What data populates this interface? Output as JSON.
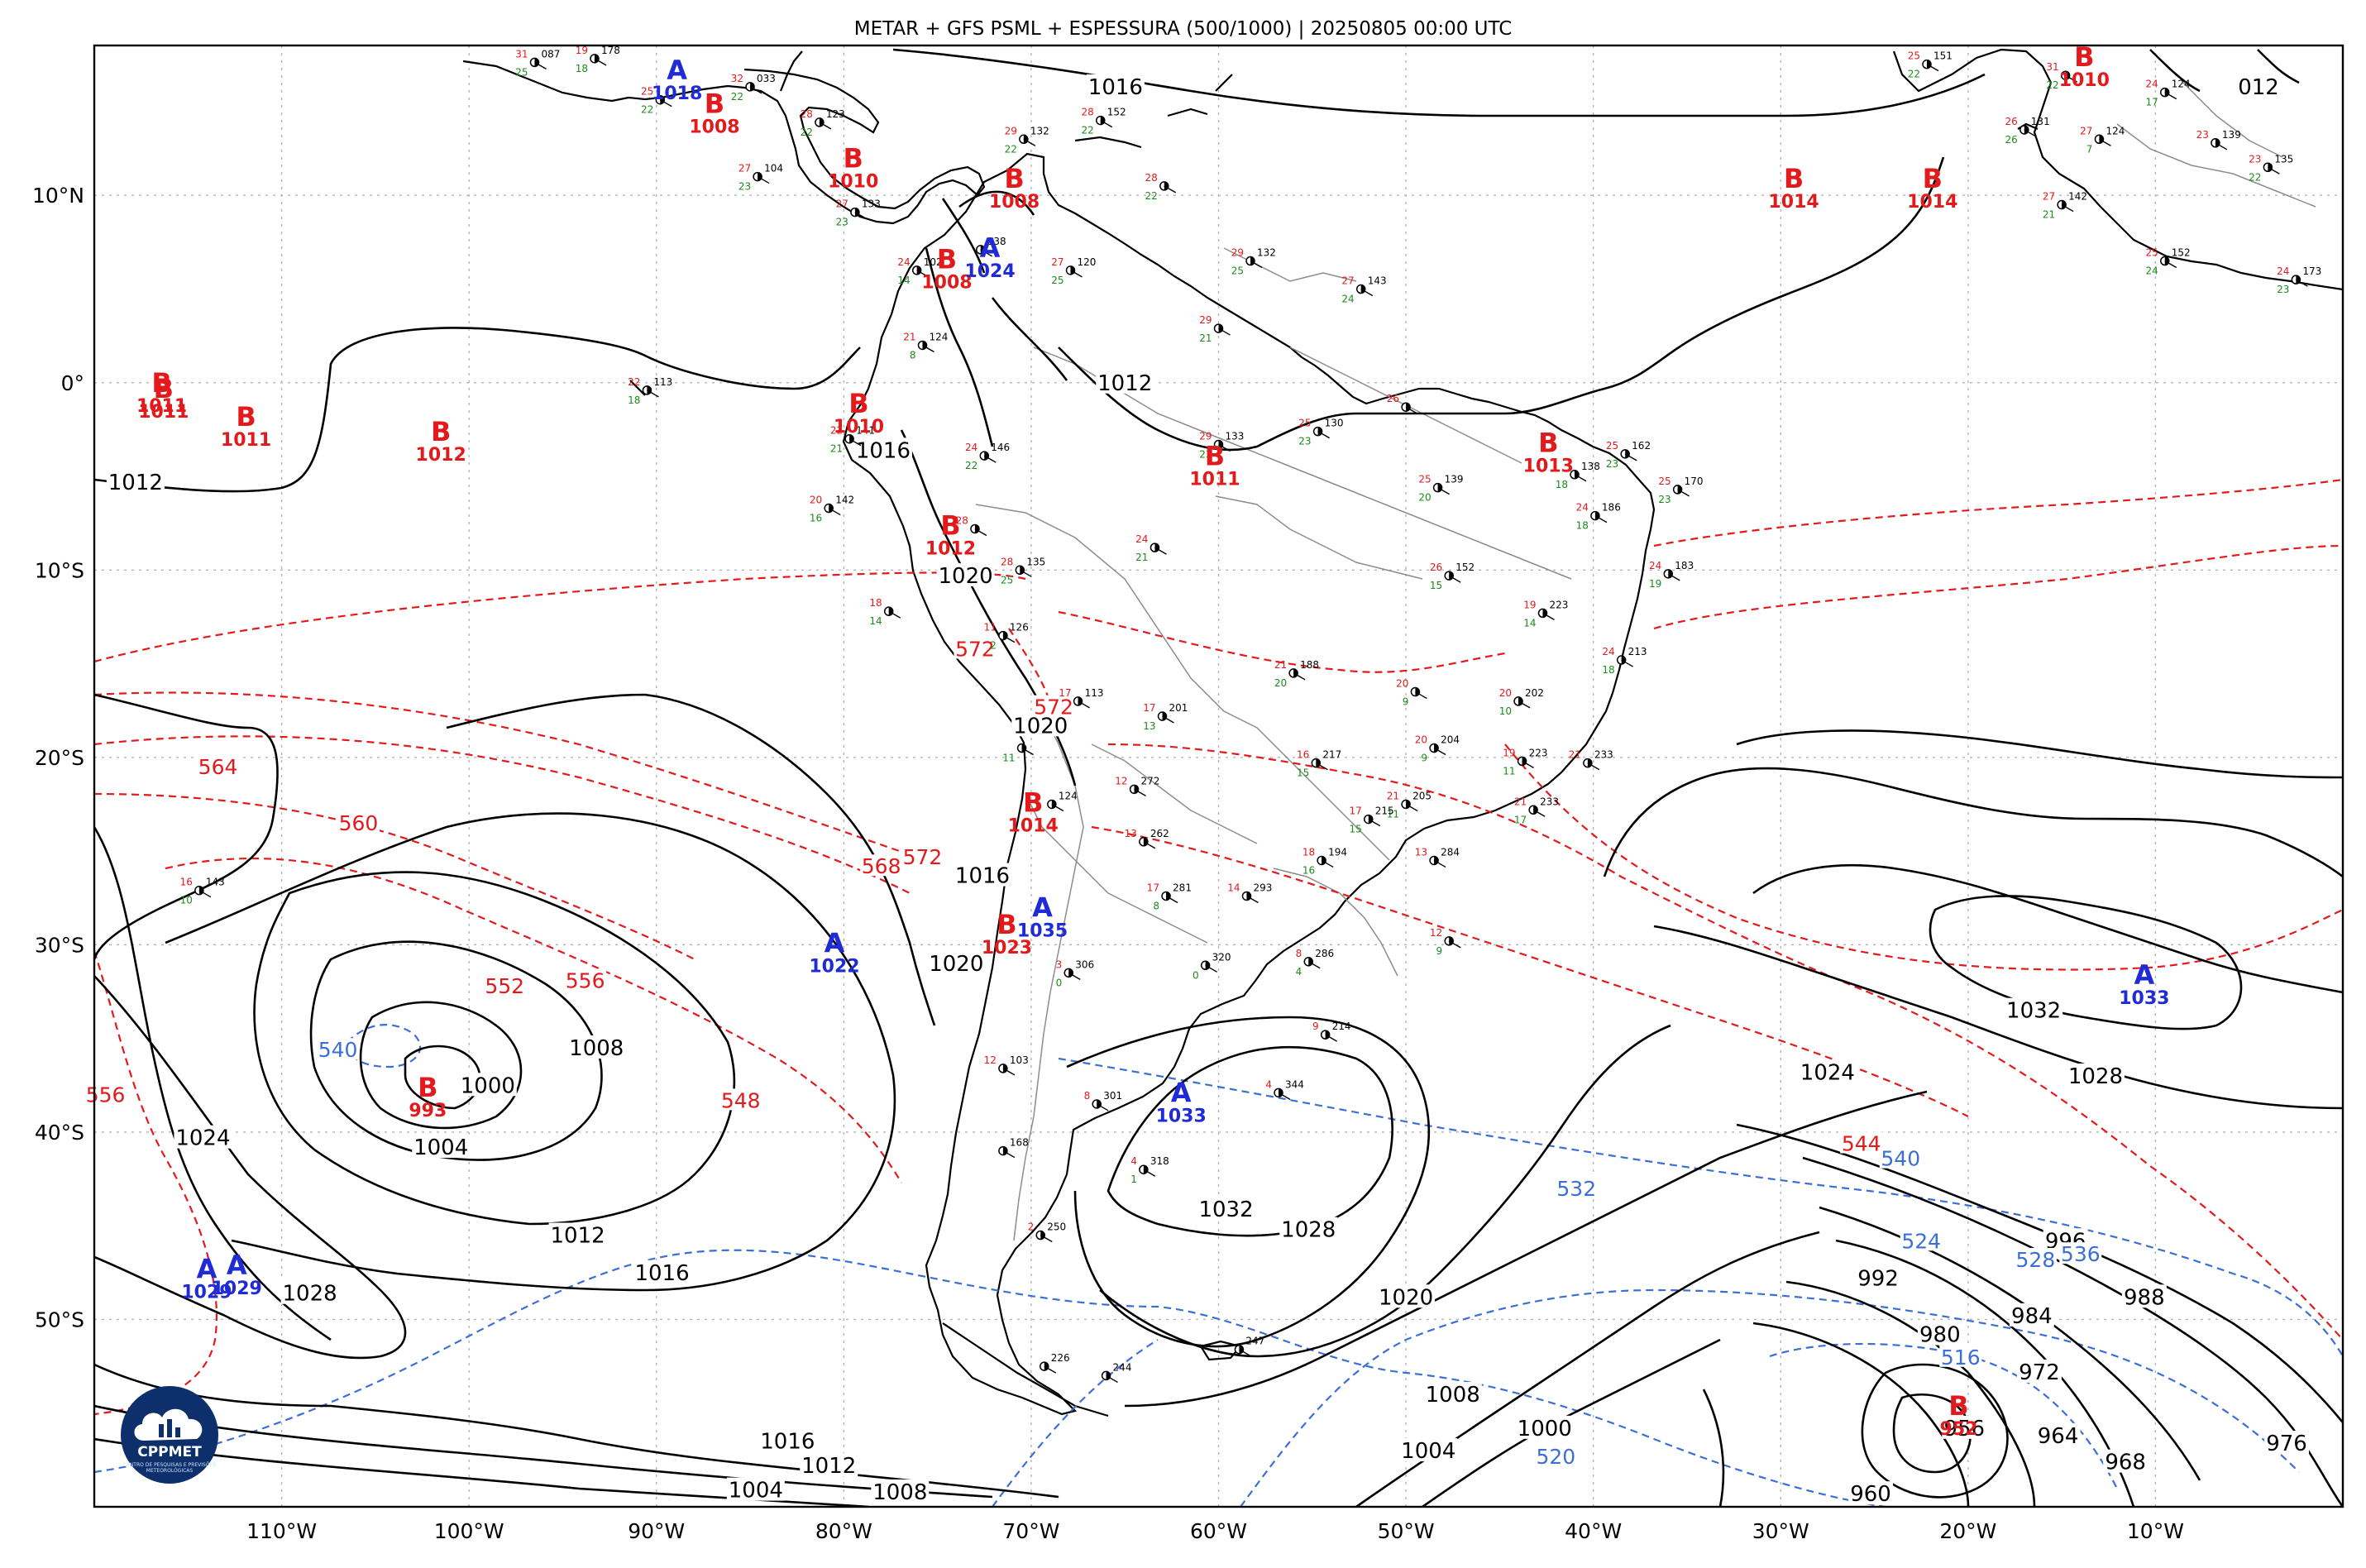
{
  "title": "METAR + GFS PSML + ESPESSURA (500/1000) | 20250805 00:00 UTC",
  "logo": {
    "text": "CPPMET",
    "subtext": "CENTRO DE PESQUISAS E PREVISÕES METEOROLÓGICAS"
  },
  "colors": {
    "low": "#e31a1c",
    "high": "#1f2bd6",
    "isobar": "#000000",
    "thickness_warm": "#e31a1c",
    "thickness_cold": "#3b6fd6",
    "border": "#8c8c8c"
  },
  "extent": {
    "lon_min": -120,
    "lon_max": 0,
    "lat_min": -60,
    "lat_max": 18
  },
  "lat_ticks": [
    {
      "value": 10,
      "label": "10°N"
    },
    {
      "value": 0,
      "label": "0°"
    },
    {
      "value": -10,
      "label": "10°S"
    },
    {
      "value": -20,
      "label": "20°S"
    },
    {
      "value": -30,
      "label": "30°S"
    },
    {
      "value": -40,
      "label": "40°S"
    },
    {
      "value": -50,
      "label": "50°S"
    }
  ],
  "lon_ticks": [
    {
      "value": -110,
      "label": "110°W"
    },
    {
      "value": -100,
      "label": "100°W"
    },
    {
      "value": -90,
      "label": "90°W"
    },
    {
      "value": -80,
      "label": "80°W"
    },
    {
      "value": -70,
      "label": "70°W"
    },
    {
      "value": -60,
      "label": "60°W"
    },
    {
      "value": -50,
      "label": "50°W"
    },
    {
      "value": -40,
      "label": "40°W"
    },
    {
      "value": -30,
      "label": "30°W"
    },
    {
      "value": -20,
      "label": "20°W"
    },
    {
      "value": -10,
      "label": "10°W"
    }
  ],
  "pressure_centers": [
    {
      "type": "B",
      "value": "1011",
      "lon": -116.4,
      "lat": -0.5
    },
    {
      "type": "B",
      "value": "1011",
      "lon": -116.3,
      "lat": -0.8
    },
    {
      "type": "B",
      "value": "1011",
      "lon": -111.9,
      "lat": -2.3
    },
    {
      "type": "B",
      "value": "1012",
      "lon": -101.5,
      "lat": -3.1
    },
    {
      "type": "B",
      "value": "1008",
      "lon": -86.9,
      "lat": 14.4
    },
    {
      "type": "A",
      "value": "1018",
      "lon": -88.9,
      "lat": 16.2
    },
    {
      "type": "B",
      "value": "1010",
      "lon": -79.5,
      "lat": 11.5
    },
    {
      "type": "B",
      "value": "1008",
      "lon": -70.9,
      "lat": 10.4
    },
    {
      "type": "B",
      "value": "1008",
      "lon": -74.5,
      "lat": 6.1
    },
    {
      "type": "A",
      "value": "1024",
      "lon": -72.2,
      "lat": 6.7
    },
    {
      "type": "B",
      "value": "1010",
      "lon": -79.2,
      "lat": -1.6
    },
    {
      "type": "B",
      "value": "1011",
      "lon": -60.2,
      "lat": -4.4
    },
    {
      "type": "B",
      "value": "1013",
      "lon": -42.4,
      "lat": -3.7
    },
    {
      "type": "B",
      "value": "1012",
      "lon": -74.3,
      "lat": -8.1
    },
    {
      "type": "B",
      "value": "1014",
      "lon": -29.3,
      "lat": 10.4
    },
    {
      "type": "B",
      "value": "1014",
      "lon": -21.9,
      "lat": 10.4
    },
    {
      "type": "B",
      "value": "1010",
      "lon": -13.8,
      "lat": 16.9
    },
    {
      "type": "B",
      "value": "1014",
      "lon": -69.9,
      "lat": -22.9
    },
    {
      "type": "B",
      "value": "1023",
      "lon": -71.3,
      "lat": -29.4
    },
    {
      "type": "A",
      "value": "1035",
      "lon": -69.4,
      "lat": -28.5
    },
    {
      "type": "A",
      "value": "1022",
      "lon": -80.5,
      "lat": -30.4
    },
    {
      "type": "B",
      "value": "993",
      "lon": -102.2,
      "lat": -38.1
    },
    {
      "type": "A",
      "value": "1033",
      "lon": -62.0,
      "lat": -38.4
    },
    {
      "type": "A",
      "value": "1033",
      "lon": -10.6,
      "lat": -32.1
    },
    {
      "type": "A",
      "value": "1029",
      "lon": -114.0,
      "lat": -47.8
    },
    {
      "type": "A",
      "value": "1029",
      "lon": -112.4,
      "lat": -47.6
    },
    {
      "type": "B",
      "value": "952",
      "lon": -20.5,
      "lat": -55.1
    }
  ],
  "isobar_labels": [
    {
      "text": "1016",
      "lon": -65.5,
      "lat": 15.8
    },
    {
      "text": "1012",
      "lon": -117.8,
      "lat": -5.3
    },
    {
      "text": "1012",
      "lon": -65.0,
      "lat": 0.0
    },
    {
      "text": "1016",
      "lon": -77.9,
      "lat": -3.6
    },
    {
      "text": "1020",
      "lon": -73.5,
      "lat": -10.3
    },
    {
      "text": "1020",
      "lon": -69.5,
      "lat": -18.3
    },
    {
      "text": "1016",
      "lon": -72.6,
      "lat": -26.3
    },
    {
      "text": "1020",
      "lon": -74.0,
      "lat": -31.0
    },
    {
      "text": "1008",
      "lon": -93.2,
      "lat": -35.5
    },
    {
      "text": "1000",
      "lon": -99.0,
      "lat": -37.5
    },
    {
      "text": "1004",
      "lon": -101.5,
      "lat": -40.8
    },
    {
      "text": "1024",
      "lon": -114.2,
      "lat": -40.3
    },
    {
      "text": "1012",
      "lon": -94.2,
      "lat": -45.5
    },
    {
      "text": "1016",
      "lon": -89.7,
      "lat": -47.5
    },
    {
      "text": "1028",
      "lon": -108.5,
      "lat": -48.6
    },
    {
      "text": "1016",
      "lon": -83.0,
      "lat": -56.5
    },
    {
      "text": "1012",
      "lon": -80.8,
      "lat": -57.8
    },
    {
      "text": "1004",
      "lon": -84.7,
      "lat": -59.1
    },
    {
      "text": "1008",
      "lon": -77.0,
      "lat": -59.2
    },
    {
      "text": "1032",
      "lon": -59.6,
      "lat": -44.1
    },
    {
      "text": "1028",
      "lon": -55.2,
      "lat": -45.2
    },
    {
      "text": "1020",
      "lon": -50.0,
      "lat": -48.8
    },
    {
      "text": "1008",
      "lon": -47.5,
      "lat": -54.0
    },
    {
      "text": "1004",
      "lon": -48.8,
      "lat": -57.0
    },
    {
      "text": "1000",
      "lon": -42.6,
      "lat": -55.8
    },
    {
      "text": "1032",
      "lon": -16.5,
      "lat": -33.5
    },
    {
      "text": "1024",
      "lon": -27.5,
      "lat": -36.8
    },
    {
      "text": "1028",
      "lon": -13.2,
      "lat": -37.0
    },
    {
      "text": "996",
      "lon": -14.8,
      "lat": -45.8
    },
    {
      "text": "992",
      "lon": -24.8,
      "lat": -47.8
    },
    {
      "text": "988",
      "lon": -10.6,
      "lat": -48.8
    },
    {
      "text": "984",
      "lon": -16.6,
      "lat": -49.8
    },
    {
      "text": "980",
      "lon": -21.5,
      "lat": -50.8
    },
    {
      "text": "972",
      "lon": -16.2,
      "lat": -52.8
    },
    {
      "text": "964",
      "lon": -15.2,
      "lat": -56.2
    },
    {
      "text": "956",
      "lon": -20.2,
      "lat": -55.8
    },
    {
      "text": "960",
      "lon": -25.2,
      "lat": -59.3
    },
    {
      "text": "968",
      "lon": -11.6,
      "lat": -57.6
    },
    {
      "text": "976",
      "lon": -3.0,
      "lat": -56.6
    },
    {
      "text": "012",
      "lon": -4.5,
      "lat": 15.8
    }
  ],
  "thickness_labels": [
    {
      "text": "564",
      "lon": -113.4,
      "lat": -20.5,
      "color": "red"
    },
    {
      "text": "560",
      "lon": -105.9,
      "lat": -23.5,
      "color": "red"
    },
    {
      "text": "568",
      "lon": -78.0,
      "lat": -25.8,
      "color": "red"
    },
    {
      "text": "572",
      "lon": -75.8,
      "lat": -25.3,
      "color": "red"
    },
    {
      "text": "572",
      "lon": -73.0,
      "lat": -14.2,
      "color": "red"
    },
    {
      "text": "572",
      "lon": -68.8,
      "lat": -17.3,
      "color": "red"
    },
    {
      "text": "552",
      "lon": -98.1,
      "lat": -32.2,
      "color": "red"
    },
    {
      "text": "556",
      "lon": -93.8,
      "lat": -31.9,
      "color": "red"
    },
    {
      "text": "548",
      "lon": -85.5,
      "lat": -38.3,
      "color": "red"
    },
    {
      "text": "556",
      "lon": -119.4,
      "lat": -38.0,
      "color": "red"
    },
    {
      "text": "544",
      "lon": -25.7,
      "lat": -40.6,
      "color": "red"
    },
    {
      "text": "540",
      "lon": -107.0,
      "lat": -35.6,
      "color": "blue"
    },
    {
      "text": "540",
      "lon": -23.6,
      "lat": -41.4,
      "color": "blue"
    },
    {
      "text": "532",
      "lon": -40.9,
      "lat": -43.0,
      "color": "blue"
    },
    {
      "text": "524",
      "lon": -22.5,
      "lat": -45.8,
      "color": "blue"
    },
    {
      "text": "528",
      "lon": -16.4,
      "lat": -46.8,
      "color": "blue"
    },
    {
      "text": "536",
      "lon": -14.0,
      "lat": -46.5,
      "color": "blue"
    },
    {
      "text": "516",
      "lon": -20.4,
      "lat": -52.0,
      "color": "blue"
    },
    {
      "text": "520",
      "lon": -42.0,
      "lat": -57.3,
      "color": "blue"
    }
  ],
  "stations": [
    {
      "t": "31",
      "d": "25",
      "p": "087",
      "lon": -96.5,
      "lat": 17.1
    },
    {
      "t": "19",
      "d": "18",
      "p": "178",
      "lon": -93.3,
      "lat": 17.3
    },
    {
      "t": "32",
      "d": "22",
      "p": "033",
      "lon": -85.0,
      "lat": 15.8
    },
    {
      "t": "25",
      "d": "22",
      "p": "",
      "lon": -89.8,
      "lat": 15.1
    },
    {
      "t": "28",
      "d": "22",
      "p": "123",
      "lon": -81.3,
      "lat": 13.9
    },
    {
      "t": "27",
      "d": "23",
      "p": "104",
      "lon": -84.6,
      "lat": 11.0
    },
    {
      "t": "27",
      "d": "23",
      "p": "133",
      "lon": -79.4,
      "lat": 9.1
    },
    {
      "t": "29",
      "d": "22",
      "p": "132",
      "lon": -70.4,
      "lat": 13.0
    },
    {
      "t": "28",
      "d": "22",
      "p": "152",
      "lon": -66.3,
      "lat": 14.0
    },
    {
      "t": "28",
      "d": "22",
      "p": "",
      "lon": -62.9,
      "lat": 10.5
    },
    {
      "t": "27",
      "d": "25",
      "p": "120",
      "lon": -67.9,
      "lat": 6.0
    },
    {
      "t": "24",
      "d": "14",
      "p": "102",
      "lon": -76.1,
      "lat": 6.0
    },
    {
      "t": "",
      "d": "",
      "p": "138",
      "lon": -72.7,
      "lat": 7.1
    },
    {
      "t": "29",
      "d": "25",
      "p": "132",
      "lon": -58.3,
      "lat": 6.5
    },
    {
      "t": "27",
      "d": "24",
      "p": "143",
      "lon": -52.4,
      "lat": 5.0
    },
    {
      "t": "29",
      "d": "21",
      "p": "",
      "lon": -60.0,
      "lat": 2.9
    },
    {
      "t": "21",
      "d": "8",
      "p": "124",
      "lon": -75.8,
      "lat": 2.0
    },
    {
      "t": "22",
      "d": "18",
      "p": "113",
      "lon": -90.5,
      "lat": -0.4
    },
    {
      "t": "22",
      "d": "21",
      "p": "141",
      "lon": -79.7,
      "lat": -3.0
    },
    {
      "t": "24",
      "d": "22",
      "p": "146",
      "lon": -72.5,
      "lat": -3.9
    },
    {
      "t": "29",
      "d": "23",
      "p": "133",
      "lon": -60.0,
      "lat": -3.3
    },
    {
      "t": "25",
      "d": "23",
      "p": "130",
      "lon": -54.7,
      "lat": -2.6
    },
    {
      "t": "26",
      "d": "",
      "p": "",
      "lon": -50.0,
      "lat": -1.3
    },
    {
      "t": "",
      "d": "18",
      "p": "138",
      "lon": -41.0,
      "lat": -4.9
    },
    {
      "t": "25",
      "d": "20",
      "p": "139",
      "lon": -48.3,
      "lat": -5.6
    },
    {
      "t": "25",
      "d": "23",
      "p": "162",
      "lon": -38.3,
      "lat": -3.8
    },
    {
      "t": "25",
      "d": "23",
      "p": "170",
      "lon": -35.5,
      "lat": -5.7
    },
    {
      "t": "20",
      "d": "16",
      "p": "142",
      "lon": -80.8,
      "lat": -6.7
    },
    {
      "t": "28",
      "d": "",
      "p": "",
      "lon": -73.0,
      "lat": -7.8
    },
    {
      "t": "24",
      "d": "21",
      "p": "",
      "lon": -63.4,
      "lat": -8.8
    },
    {
      "t": "28",
      "d": "25",
      "p": "135",
      "lon": -70.6,
      "lat": -10.0
    },
    {
      "t": "26",
      "d": "15",
      "p": "152",
      "lon": -47.7,
      "lat": -10.3
    },
    {
      "t": "24",
      "d": "18",
      "p": "186",
      "lon": -39.9,
      "lat": -7.1
    },
    {
      "t": "24",
      "d": "19",
      "p": "183",
      "lon": -36.0,
      "lat": -10.2
    },
    {
      "t": "19",
      "d": "14",
      "p": "223",
      "lon": -42.7,
      "lat": -12.3
    },
    {
      "t": "18",
      "d": "14",
      "p": "",
      "lon": -77.6,
      "lat": -12.2
    },
    {
      "t": "24",
      "d": "18",
      "p": "213",
      "lon": -38.5,
      "lat": -14.8
    },
    {
      "t": "11",
      "d": "2",
      "p": "126",
      "lon": -71.5,
      "lat": -13.5
    },
    {
      "t": "21",
      "d": "20",
      "p": "188",
      "lon": -56.0,
      "lat": -15.5
    },
    {
      "t": "20",
      "d": "9",
      "p": "",
      "lon": -49.5,
      "lat": -16.5
    },
    {
      "t": "20",
      "d": "10",
      "p": "202",
      "lon": -44.0,
      "lat": -17.0
    },
    {
      "t": "17",
      "d": "13",
      "p": "201",
      "lon": -63.0,
      "lat": -17.8
    },
    {
      "t": "17",
      "d": "",
      "p": "113",
      "lon": -67.5,
      "lat": -17.0
    },
    {
      "t": "",
      "d": "11",
      "p": "",
      "lon": -70.5,
      "lat": -19.5
    },
    {
      "t": "20",
      "d": "9",
      "p": "204",
      "lon": -48.5,
      "lat": -19.5
    },
    {
      "t": "16",
      "d": "15",
      "p": "217",
      "lon": -54.8,
      "lat": -20.3
    },
    {
      "t": "19",
      "d": "11",
      "p": "223",
      "lon": -43.8,
      "lat": -20.2
    },
    {
      "t": "21",
      "d": "",
      "p": "233",
      "lon": -40.3,
      "lat": -20.3
    },
    {
      "t": "12",
      "d": "",
      "p": "272",
      "lon": -64.5,
      "lat": -21.7
    },
    {
      "t": "",
      "d": "",
      "p": "124",
      "lon": -68.9,
      "lat": -22.5
    },
    {
      "t": "21",
      "d": "11",
      "p": "205",
      "lon": -50.0,
      "lat": -22.5
    },
    {
      "t": "21",
      "d": "17",
      "p": "233",
      "lon": -43.2,
      "lat": -22.8
    },
    {
      "t": "17",
      "d": "15",
      "p": "215",
      "lon": -52.0,
      "lat": -23.3
    },
    {
      "t": "13",
      "d": "",
      "p": "262",
      "lon": -64.0,
      "lat": -24.5
    },
    {
      "t": "18",
      "d": "16",
      "p": "194",
      "lon": -54.5,
      "lat": -25.5
    },
    {
      "t": "13",
      "d": "",
      "p": "284",
      "lon": -48.5,
      "lat": -25.5
    },
    {
      "t": "17",
      "d": "8",
      "p": "281",
      "lon": -62.8,
      "lat": -27.4
    },
    {
      "t": "14",
      "d": "",
      "p": "293",
      "lon": -58.5,
      "lat": -27.4
    },
    {
      "t": "16",
      "d": "10",
      "p": "143",
      "lon": -114.4,
      "lat": -27.1
    },
    {
      "t": "12",
      "d": "9",
      "p": "",
      "lon": -47.7,
      "lat": -29.8
    },
    {
      "t": "3",
      "d": "0",
      "p": "306",
      "lon": -68.0,
      "lat": -31.5
    },
    {
      "t": "",
      "d": "0",
      "p": "320",
      "lon": -60.7,
      "lat": -31.1
    },
    {
      "t": "8",
      "d": "4",
      "p": "286",
      "lon": -55.2,
      "lat": -30.9
    },
    {
      "t": "9",
      "d": "",
      "p": "214",
      "lon": -54.3,
      "lat": -34.8
    },
    {
      "t": "12",
      "d": "",
      "p": "103",
      "lon": -71.5,
      "lat": -36.6
    },
    {
      "t": "8",
      "d": "",
      "p": "301",
      "lon": -66.5,
      "lat": -38.5
    },
    {
      "t": "4",
      "d": "",
      "p": "344",
      "lon": -56.8,
      "lat": -37.9
    },
    {
      "t": "4",
      "d": "1",
      "p": "318",
      "lon": -64.0,
      "lat": -42.0
    },
    {
      "t": "",
      "d": "",
      "p": "168",
      "lon": -71.5,
      "lat": -41.0
    },
    {
      "t": "2",
      "d": "",
      "p": "250",
      "lon": -69.5,
      "lat": -45.5
    },
    {
      "t": "",
      "d": "",
      "p": "226",
      "lon": -69.3,
      "lat": -52.5
    },
    {
      "t": "",
      "d": "",
      "p": "244",
      "lon": -66.0,
      "lat": -53.0
    },
    {
      "t": "",
      "d": "",
      "p": "247",
      "lon": -58.9,
      "lat": -51.6
    },
    {
      "t": "25",
      "d": "22",
      "p": "151",
      "lon": -22.2,
      "lat": 17.0
    },
    {
      "t": "31",
      "d": "22",
      "p": "",
      "lon": -14.8,
      "lat": 16.4
    },
    {
      "t": "26",
      "d": "26",
      "p": "131",
      "lon": -17.0,
      "lat": 13.5
    },
    {
      "t": "27",
      "d": "7",
      "p": "124",
      "lon": -13.0,
      "lat": 13.0
    },
    {
      "t": "24",
      "d": "17",
      "p": "124",
      "lon": -9.5,
      "lat": 15.5
    },
    {
      "t": "23",
      "d": "",
      "p": "139",
      "lon": -6.8,
      "lat": 12.8
    },
    {
      "t": "23",
      "d": "22",
      "p": "135",
      "lon": -4.0,
      "lat": 11.5
    },
    {
      "t": "27",
      "d": "21",
      "p": "142",
      "lon": -15.0,
      "lat": 9.5
    },
    {
      "t": "25",
      "d": "24",
      "p": "152",
      "lon": -9.5,
      "lat": 6.5
    },
    {
      "t": "24",
      "d": "23",
      "p": "173",
      "lon": -2.5,
      "lat": 5.5
    }
  ]
}
